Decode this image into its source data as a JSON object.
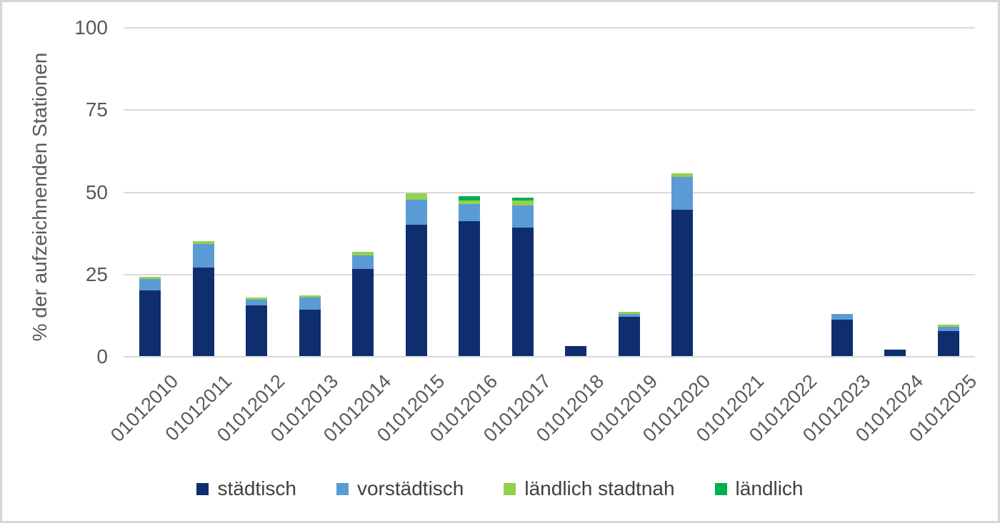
{
  "chart_data": {
    "type": "bar",
    "stacked": true,
    "title": "",
    "xlabel": "",
    "ylabel": "% der aufzeichnenden Stationen",
    "ylim": [
      0,
      100
    ],
    "yticks": [
      0,
      25,
      50,
      75,
      100
    ],
    "grid": true,
    "legend_position": "bottom",
    "categories": [
      "01012010",
      "01012011",
      "01012012",
      "01012013",
      "01012014",
      "01012015",
      "01012016",
      "01012017",
      "01012018",
      "01012019",
      "01012020",
      "01012021",
      "01012022",
      "01012023",
      "01012024",
      "01012025"
    ],
    "series": [
      {
        "name": "städtisch",
        "color": "#0f2e6d",
        "values": [
          20,
          27,
          15.5,
          14,
          26.5,
          40,
          41,
          39,
          3,
          12,
          44.5,
          0,
          0,
          11,
          2,
          7.5
        ]
      },
      {
        "name": "vorstädtisch",
        "color": "#5b9bd5",
        "values": [
          3.5,
          7,
          1.7,
          3.7,
          4,
          7.5,
          5.3,
          6.7,
          0,
          0.8,
          10,
          0,
          0,
          1.8,
          0,
          1.3
        ]
      },
      {
        "name": "ländlich stadtnah",
        "color": "#92d050",
        "values": [
          0.5,
          1,
          0.6,
          0.7,
          1.2,
          2,
          1,
          1.5,
          0,
          0.6,
          1,
          0,
          0,
          0,
          0,
          0.8
        ]
      },
      {
        "name": "ländlich",
        "color": "#00b050",
        "values": [
          0,
          0,
          0,
          0,
          0,
          0,
          1.2,
          1,
          0,
          0,
          0,
          0,
          0,
          0,
          0,
          0
        ]
      }
    ]
  },
  "style": {
    "gridline_color": "#d9d9d9",
    "axis_text_color": "#595959",
    "legend_text_color": "#404040",
    "frame_border_color": "#d6d6d6",
    "background_color": "#ffffff"
  }
}
